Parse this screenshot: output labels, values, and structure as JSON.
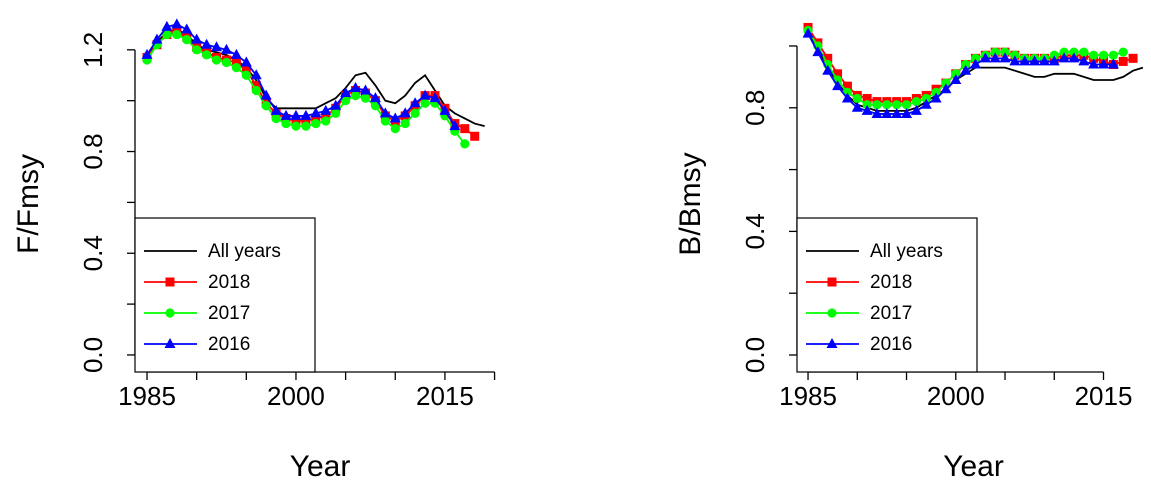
{
  "chart_data": [
    {
      "type": "line",
      "xlabel": "Year",
      "ylabel": "F/Fmsy",
      "legend": "bottomleft",
      "x": [
        1985,
        1986,
        1987,
        1988,
        1989,
        1990,
        1991,
        1992,
        1993,
        1994,
        1995,
        1996,
        1997,
        1998,
        1999,
        2000,
        2001,
        2002,
        2003,
        2004,
        2005,
        2006,
        2007,
        2008,
        2009,
        2010,
        2011,
        2012,
        2013,
        2014,
        2015,
        2016,
        2017,
        2018,
        2019
      ],
      "xlim": [
        1983.79,
        2021.05
      ],
      "xticks": [
        1985,
        2000,
        2015
      ],
      "xminor": [
        1990,
        1995,
        2005,
        2010,
        2020
      ],
      "ylim": [
        -0.067,
        1.333
      ],
      "yticks": [
        {
          "value": 0,
          "label": "0.0"
        },
        0.4,
        0.8,
        1.2
      ],
      "yminor": [
        0.2,
        0.6,
        1.0
      ],
      "series": [
        {
          "name": "All years",
          "color": "#000000",
          "marker": null,
          "values": [
            1.18,
            1.23,
            1.27,
            1.28,
            1.26,
            1.22,
            1.2,
            1.19,
            1.18,
            1.16,
            1.13,
            1.08,
            1.01,
            0.97,
            0.97,
            0.97,
            0.97,
            0.97,
            0.99,
            1.01,
            1.05,
            1.1,
            1.11,
            1.06,
            1.0,
            0.99,
            1.02,
            1.07,
            1.1,
            1.04,
            0.98,
            0.95,
            0.93,
            0.91,
            0.9
          ]
        },
        {
          "name": "2018",
          "color": "#ff0000",
          "marker": "square",
          "values": [
            1.17,
            1.22,
            1.26,
            1.27,
            1.25,
            1.21,
            1.19,
            1.17,
            1.16,
            1.15,
            1.12,
            1.06,
            0.99,
            0.95,
            0.93,
            0.92,
            0.92,
            0.93,
            0.94,
            0.97,
            1.02,
            1.04,
            1.03,
            1.0,
            0.94,
            0.92,
            0.94,
            0.98,
            1.02,
            1.02,
            0.97,
            0.91,
            0.89,
            0.86,
            null
          ]
        },
        {
          "name": "2017",
          "color": "#00ff00",
          "marker": "circle",
          "values": [
            1.16,
            1.22,
            1.26,
            1.26,
            1.24,
            1.2,
            1.18,
            1.16,
            1.15,
            1.13,
            1.1,
            1.04,
            0.98,
            0.93,
            0.91,
            0.9,
            0.9,
            0.91,
            0.92,
            0.95,
            1.0,
            1.02,
            1.01,
            0.98,
            0.92,
            0.89,
            0.91,
            0.95,
            0.99,
            0.99,
            0.94,
            0.88,
            0.83,
            null,
            null
          ]
        },
        {
          "name": "2016",
          "color": "#0000ff",
          "marker": "triangle",
          "values": [
            1.18,
            1.24,
            1.29,
            1.3,
            1.28,
            1.24,
            1.22,
            1.21,
            1.2,
            1.18,
            1.15,
            1.1,
            1.02,
            0.96,
            0.94,
            0.94,
            0.94,
            0.95,
            0.96,
            0.98,
            1.03,
            1.05,
            1.04,
            1.01,
            0.95,
            0.93,
            0.95,
            0.99,
            1.02,
            1.01,
            0.96,
            0.9,
            null,
            null,
            null
          ]
        }
      ]
    },
    {
      "type": "line",
      "xlabel": "Year",
      "ylabel": "B/Bmsy",
      "legend": "bottomleft",
      "x": [
        1985,
        1986,
        1987,
        1988,
        1989,
        1990,
        1991,
        1992,
        1993,
        1994,
        1995,
        1996,
        1997,
        1998,
        1999,
        2000,
        2001,
        2002,
        2003,
        2004,
        2005,
        2006,
        2007,
        2008,
        2009,
        2010,
        2011,
        2012,
        2013,
        2014,
        2015,
        2016,
        2017,
        2018,
        2019
      ],
      "xlim": [
        1983.88,
        2019.72
      ],
      "xticks": [
        1985,
        2000,
        2015
      ],
      "xminor": [
        1990,
        1995,
        2005,
        2010
      ],
      "ylim": [
        -0.055,
        1.097
      ],
      "yticks": [
        {
          "value": 0,
          "label": "0.0"
        },
        0.4,
        0.8
      ],
      "yminor": [
        0.2,
        0.6,
        1.0
      ],
      "series": [
        {
          "name": "All years",
          "color": "#000000",
          "marker": null,
          "values": [
            1.04,
            0.99,
            0.93,
            0.88,
            0.84,
            0.81,
            0.8,
            0.79,
            0.79,
            0.79,
            0.79,
            0.8,
            0.82,
            0.84,
            0.86,
            0.89,
            0.91,
            0.93,
            0.93,
            0.93,
            0.93,
            0.92,
            0.91,
            0.9,
            0.9,
            0.91,
            0.91,
            0.91,
            0.9,
            0.89,
            0.89,
            0.89,
            0.9,
            0.92,
            0.93
          ]
        },
        {
          "name": "2018",
          "color": "#ff0000",
          "marker": "square",
          "values": [
            1.06,
            1.01,
            0.96,
            0.91,
            0.87,
            0.84,
            0.83,
            0.82,
            0.82,
            0.82,
            0.82,
            0.83,
            0.84,
            0.86,
            0.88,
            0.91,
            0.94,
            0.96,
            0.97,
            0.98,
            0.98,
            0.97,
            0.96,
            0.96,
            0.96,
            0.96,
            0.97,
            0.97,
            0.97,
            0.96,
            0.95,
            0.94,
            0.95,
            0.96,
            null
          ]
        },
        {
          "name": "2017",
          "color": "#00ff00",
          "marker": "circle",
          "values": [
            1.05,
            1.0,
            0.94,
            0.89,
            0.85,
            0.83,
            0.81,
            0.81,
            0.81,
            0.81,
            0.81,
            0.82,
            0.83,
            0.85,
            0.88,
            0.91,
            0.94,
            0.96,
            0.97,
            0.98,
            0.98,
            0.97,
            0.96,
            0.96,
            0.96,
            0.97,
            0.98,
            0.98,
            0.98,
            0.97,
            0.97,
            0.97,
            0.98,
            null,
            null
          ]
        },
        {
          "name": "2016",
          "color": "#0000ff",
          "marker": "triangle",
          "values": [
            1.04,
            0.98,
            0.92,
            0.87,
            0.83,
            0.8,
            0.79,
            0.78,
            0.78,
            0.78,
            0.78,
            0.79,
            0.81,
            0.83,
            0.86,
            0.89,
            0.92,
            0.94,
            0.96,
            0.96,
            0.96,
            0.95,
            0.95,
            0.95,
            0.95,
            0.95,
            0.96,
            0.96,
            0.95,
            0.94,
            0.94,
            0.94,
            null,
            null,
            null
          ]
        }
      ]
    }
  ]
}
